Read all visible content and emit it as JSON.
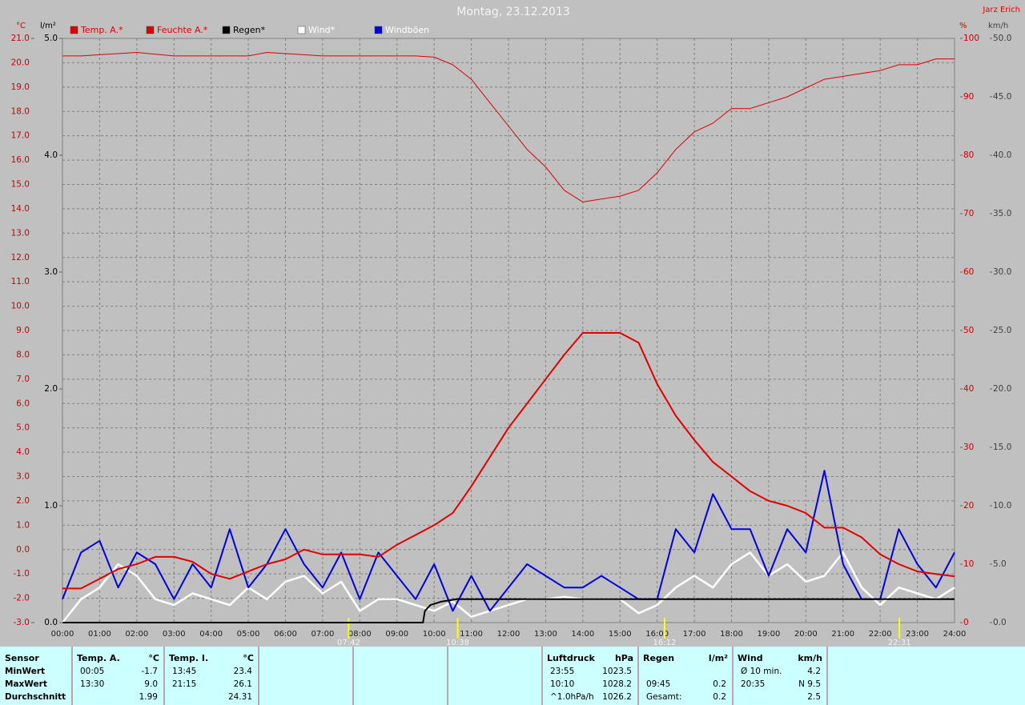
{
  "chart_data": {
    "type": "line",
    "title": "Montag, 23.12.2013",
    "author": "Jarz Erich",
    "xlim": [
      0,
      24
    ],
    "xticks": [
      {
        "value": 0,
        "label": "00:00"
      },
      {
        "value": 1,
        "label": "01:00"
      },
      {
        "value": 2,
        "label": "02:00"
      },
      {
        "value": 3,
        "label": "03:00"
      },
      {
        "value": 4,
        "label": "04:00"
      },
      {
        "value": 5,
        "label": "05:00"
      },
      {
        "value": 6,
        "label": "06:00"
      },
      {
        "value": 7,
        "label": "07:00"
      },
      {
        "value": 8,
        "label": "08:00"
      },
      {
        "value": 9,
        "label": "09:00"
      },
      {
        "value": 10,
        "label": "10:00"
      },
      {
        "value": 11,
        "label": "11:00"
      },
      {
        "value": 12,
        "label": "12:00"
      },
      {
        "value": 13,
        "label": "13:00"
      },
      {
        "value": 14,
        "label": "14:00"
      },
      {
        "value": 15,
        "label": "15:00"
      },
      {
        "value": 16,
        "label": "16:00"
      },
      {
        "value": 17,
        "label": "17:00"
      },
      {
        "value": 18,
        "label": "18:00"
      },
      {
        "value": 19,
        "label": "19:00"
      },
      {
        "value": 20,
        "label": "20:00"
      },
      {
        "value": 21,
        "label": "21:00"
      },
      {
        "value": 22,
        "label": "22:00"
      },
      {
        "value": 23,
        "label": "23:00"
      },
      {
        "value": 24,
        "label": "24:00"
      }
    ],
    "grid": true,
    "axes": [
      {
        "label": "°C",
        "color": "#d00000",
        "lim": [
          -3,
          21
        ],
        "ticks": [
          {
            "value": -3,
            "label": "-3.0"
          },
          {
            "value": -2,
            "label": "-2.0"
          },
          {
            "value": -1,
            "label": "-1.0"
          },
          {
            "value": 0,
            "label": "0.0"
          },
          {
            "value": 1,
            "label": "1.0"
          },
          {
            "value": 2,
            "label": "2.0"
          },
          {
            "value": 3,
            "label": "3.0"
          },
          {
            "value": 4,
            "label": "4.0"
          },
          {
            "value": 5,
            "label": "5.0"
          },
          {
            "value": 6,
            "label": "6.0"
          },
          {
            "value": 7,
            "label": "7.0"
          },
          {
            "value": 8,
            "label": "8.0"
          },
          {
            "value": 9,
            "label": "9.0"
          },
          {
            "value": 10,
            "label": "10.0"
          },
          {
            "value": 11,
            "label": "11.0"
          },
          {
            "value": 12,
            "label": "12.0"
          },
          {
            "value": 13,
            "label": "13.0"
          },
          {
            "value": 14,
            "label": "14.0"
          },
          {
            "value": 15,
            "label": "15.0"
          },
          {
            "value": 16,
            "label": "16.0"
          },
          {
            "value": 17,
            "label": "17.0"
          },
          {
            "value": 18,
            "label": "18.0"
          },
          {
            "value": 19,
            "label": "19.0"
          },
          {
            "value": 20,
            "label": "20.0"
          },
          {
            "value": 21,
            "label": "21.0"
          }
        ]
      },
      {
        "label": "l/m²",
        "color": "#000000",
        "lim": [
          0,
          5
        ],
        "ticks": [
          {
            "value": 0,
            "label": "0.0"
          },
          {
            "value": 1,
            "label": "1.0"
          },
          {
            "value": 2,
            "label": "2.0"
          },
          {
            "value": 3,
            "label": "3.0"
          },
          {
            "value": 4,
            "label": "4.0"
          },
          {
            "value": 5,
            "label": "5.0"
          }
        ]
      },
      {
        "label": "%",
        "color": "#d00000",
        "lim": [
          0,
          100
        ],
        "ticks": [
          0,
          10,
          20,
          30,
          40,
          50,
          60,
          70,
          80,
          90,
          100
        ]
      },
      {
        "label": "km/h",
        "color": "#404040",
        "lim": [
          0,
          50
        ],
        "ticks": [
          {
            "value": 0,
            "label": "0.0"
          },
          {
            "value": 5,
            "label": "5.0"
          },
          {
            "value": 10,
            "label": "10.0"
          },
          {
            "value": 15,
            "label": "15.0"
          },
          {
            "value": 20,
            "label": "20.0"
          },
          {
            "value": 25,
            "label": "25.0"
          },
          {
            "value": 30,
            "label": "30.0"
          },
          {
            "value": 35,
            "label": "35.0"
          },
          {
            "value": 40,
            "label": "40.0"
          },
          {
            "value": 45,
            "label": "45.0"
          },
          {
            "value": 50,
            "label": "50.0"
          }
        ]
      }
    ],
    "series": [
      {
        "name": "Temp. A.*",
        "color": "#e00000",
        "label_color": "#e00000",
        "width": 2,
        "axis": 0,
        "x": [
          0,
          0.5,
          1,
          1.5,
          2,
          2.5,
          3,
          3.5,
          4,
          4.5,
          5,
          5.5,
          6,
          6.5,
          7,
          7.5,
          8,
          8.5,
          9,
          9.5,
          10,
          10.5,
          11,
          11.5,
          12,
          12.5,
          13,
          13.5,
          14,
          14.5,
          15,
          15.5,
          16,
          16.5,
          17,
          17.5,
          18,
          18.5,
          19,
          19.5,
          20,
          20.5,
          21,
          21.5,
          22,
          22.5,
          23,
          23.5,
          24
        ],
        "values": [
          -1.6,
          -1.6,
          -1.2,
          -0.8,
          -0.6,
          -0.3,
          -0.3,
          -0.5,
          -1.0,
          -1.2,
          -0.9,
          -0.6,
          -0.4,
          0.0,
          -0.2,
          -0.2,
          -0.2,
          -0.3,
          0.2,
          0.6,
          1.0,
          1.5,
          2.6,
          3.8,
          5.0,
          6.0,
          7.0,
          8.0,
          8.9,
          8.9,
          8.9,
          8.5,
          6.8,
          5.5,
          4.5,
          3.6,
          3.0,
          2.4,
          2.0,
          1.8,
          1.5,
          0.9,
          0.9,
          0.5,
          -0.2,
          -0.6,
          -0.9,
          -1.0,
          -1.1
        ]
      },
      {
        "name": "Feuchte A.*",
        "color": "#e00000",
        "label_color": "#e00000",
        "width": 1,
        "axis": 2,
        "x": [
          0,
          0.5,
          1,
          1.5,
          2,
          2.5,
          3,
          3.5,
          4,
          4.5,
          5,
          5.5,
          6,
          6.5,
          7,
          7.5,
          8,
          8.5,
          9,
          9.5,
          10,
          10.5,
          11,
          11.5,
          12,
          12.5,
          13,
          13.5,
          14,
          14.5,
          15,
          15.5,
          16,
          16.5,
          17,
          17.5,
          18,
          18.5,
          19,
          19.5,
          20,
          20.5,
          21,
          21.5,
          22,
          22.5,
          23,
          23.5,
          24
        ],
        "values": [
          97,
          97,
          97.2,
          97.4,
          97.6,
          97.3,
          97,
          97,
          97,
          97,
          97,
          97.6,
          97.4,
          97.2,
          97,
          97,
          97,
          97,
          97,
          97,
          96.8,
          95.5,
          93,
          89,
          85,
          81,
          78,
          74,
          72,
          72.5,
          73,
          74,
          77,
          81,
          84,
          85.5,
          88,
          88,
          89,
          90,
          91.5,
          93,
          93.5,
          94,
          94.5,
          95.5,
          95.5,
          96.5,
          96.5
        ]
      },
      {
        "name": "Regen*",
        "color": "#000000",
        "label_color": "#000000",
        "width": 2,
        "axis": 1,
        "x": [
          0,
          9.7,
          9.75,
          9.9,
          10.2,
          10.6,
          24
        ],
        "values": [
          0,
          0,
          0.1,
          0.15,
          0.18,
          0.2,
          0.2
        ]
      },
      {
        "name": "Wind*",
        "color": "#ffffff",
        "label_color": "#ffffff",
        "width": 2.5,
        "axis": 3,
        "x": [
          0,
          0.5,
          1,
          1.5,
          2,
          2.5,
          3,
          3.5,
          4,
          4.5,
          5,
          5.5,
          6,
          6.5,
          7,
          7.5,
          8,
          8.5,
          9,
          9.5,
          10,
          10.5,
          11,
          11.5,
          12,
          12.5,
          13,
          13.5,
          14,
          14.5,
          15,
          15.5,
          16,
          16.5,
          17,
          17.5,
          18,
          18.5,
          19,
          19.5,
          20,
          20.5,
          21,
          21.5,
          22,
          22.5,
          23,
          23.5,
          24
        ],
        "values": [
          0,
          2,
          3,
          5,
          4,
          2,
          1.5,
          2.5,
          2,
          1.5,
          3,
          2,
          3.5,
          4,
          2.5,
          3.5,
          1,
          2,
          2,
          1.5,
          1,
          1.8,
          0.5,
          1,
          1.5,
          2,
          2,
          2.2,
          2,
          2,
          2,
          0.8,
          1.5,
          3,
          4,
          3,
          5,
          6,
          4,
          5,
          3.5,
          4,
          6,
          3,
          1.5,
          3,
          2.5,
          2,
          3
        ]
      },
      {
        "name": "Windböen",
        "color": "#0000e0",
        "label_color": "#ffffff",
        "width": 2,
        "axis": 3,
        "x": [
          0,
          0.5,
          1,
          1.5,
          2,
          2.5,
          3,
          3.5,
          4,
          4.5,
          5,
          5.5,
          6,
          6.5,
          7,
          7.5,
          8,
          8.5,
          9,
          9.5,
          10,
          10.5,
          11,
          11.5,
          12,
          12.5,
          13,
          13.5,
          14,
          14.5,
          15,
          15.5,
          16,
          16.5,
          17,
          17.5,
          18,
          18.5,
          19,
          19.5,
          20,
          20.5,
          21,
          21.5,
          22,
          22.5,
          23,
          23.5,
          24
        ],
        "values": [
          2,
          6,
          7,
          3,
          6,
          5,
          2,
          5,
          3,
          8,
          3,
          5,
          8,
          5,
          3,
          6,
          2,
          6,
          4,
          2,
          5,
          1,
          4,
          1,
          3,
          5,
          4,
          3,
          3,
          4,
          3,
          2,
          2,
          8,
          6,
          11,
          8,
          8,
          4,
          8,
          6,
          13,
          5,
          2,
          2,
          8,
          5,
          3,
          6
        ]
      }
    ],
    "markers": [
      {
        "x": 7.7,
        "label": "07:42"
      },
      {
        "x": 10.633,
        "label": "10:38"
      },
      {
        "x": 16.2,
        "label": "16:12"
      },
      {
        "x": 22.517,
        "label": "22:31"
      }
    ]
  },
  "stats_panel": [
    {
      "header": [
        "Sensor"
      ],
      "rows": [
        [
          "MinWert"
        ],
        [
          "MaxWert"
        ],
        [
          "Durchschnitt"
        ]
      ]
    },
    {
      "header": [
        "Temp. A.",
        "°C"
      ],
      "rows": [
        [
          "00:05",
          "-1.7"
        ],
        [
          "13:30",
          "9.0"
        ],
        [
          null,
          "1.99"
        ]
      ]
    },
    {
      "header": [
        "Temp. I.",
        "°C"
      ],
      "rows": [
        [
          "13:45",
          "23.4"
        ],
        [
          "21:15",
          "26.1"
        ],
        [
          null,
          "24.31"
        ]
      ]
    },
    {
      "header": [
        "Luftdruck",
        "hPa"
      ],
      "rows": [
        [
          "23:55",
          "1023.5"
        ],
        [
          "10:10",
          "1028.2"
        ],
        [
          "^1.0hPa/h",
          "1026.2"
        ]
      ]
    },
    {
      "header": [
        "Regen",
        "l/m²"
      ],
      "rows": [
        [
          null,
          null
        ],
        [
          "09:45",
          "0.2"
        ],
        [
          "Gesamt:",
          "0.2"
        ]
      ]
    },
    {
      "header": [
        "Wind",
        "km/h"
      ],
      "rows": [
        [
          "Ø 10 min.",
          "4.2"
        ],
        [
          "20:35",
          "N 9.5"
        ],
        [
          null,
          "2.5"
        ]
      ]
    }
  ]
}
